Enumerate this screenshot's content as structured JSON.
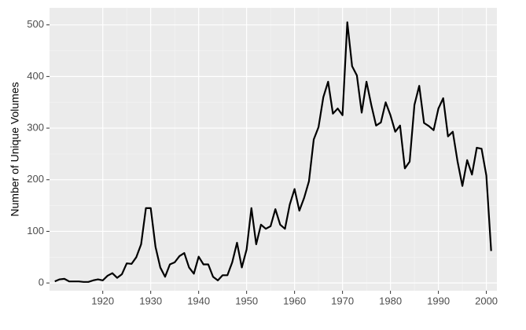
{
  "chart_data": {
    "type": "line",
    "y_label": "Number of Unique Volumes",
    "x": [
      1910,
      1911,
      1912,
      1913,
      1914,
      1915,
      1916,
      1917,
      1918,
      1919,
      1920,
      1921,
      1922,
      1923,
      1924,
      1925,
      1926,
      1927,
      1928,
      1929,
      1930,
      1931,
      1932,
      1933,
      1934,
      1935,
      1936,
      1937,
      1938,
      1939,
      1940,
      1941,
      1942,
      1943,
      1944,
      1945,
      1946,
      1947,
      1948,
      1949,
      1950,
      1951,
      1952,
      1953,
      1954,
      1955,
      1956,
      1957,
      1958,
      1959,
      1960,
      1961,
      1962,
      1963,
      1964,
      1965,
      1966,
      1967,
      1968,
      1969,
      1970,
      1971,
      1972,
      1973,
      1974,
      1975,
      1976,
      1977,
      1978,
      1979,
      1980,
      1981,
      1982,
      1983,
      1984,
      1985,
      1986,
      1987,
      1988,
      1989,
      1990,
      1991,
      1992,
      1993,
      1994,
      1995,
      1996,
      1997,
      1998,
      1999,
      2000,
      2001
    ],
    "series": [
      {
        "color": "#000000",
        "values": [
          3,
          7,
          8,
          3,
          3,
          3,
          2,
          2,
          5,
          7,
          5,
          14,
          19,
          10,
          17,
          38,
          37,
          50,
          75,
          145,
          145,
          70,
          30,
          12,
          36,
          40,
          52,
          58,
          30,
          18,
          51,
          36,
          36,
          12,
          5,
          15,
          15,
          40,
          78,
          30,
          65,
          145,
          75,
          113,
          105,
          110,
          143,
          113,
          105,
          152,
          182,
          140,
          165,
          197,
          278,
          302,
          360,
          390,
          328,
          338,
          325,
          505,
          420,
          402,
          330,
          390,
          345,
          305,
          311,
          350,
          325,
          293,
          305,
          222,
          235,
          345,
          382,
          310,
          304,
          296,
          338,
          358,
          284,
          293,
          235,
          188,
          238,
          210,
          262,
          260,
          208,
          62
        ]
      }
    ],
    "xlim": [
      1908.9,
      2002.2
    ],
    "ylim": [
      -15,
      533
    ],
    "xticks": [
      1920,
      1930,
      1940,
      1950,
      1960,
      1970,
      1980,
      1990,
      2000
    ],
    "yticks": [
      0,
      100,
      200,
      300,
      400,
      500
    ],
    "grid": true
  }
}
